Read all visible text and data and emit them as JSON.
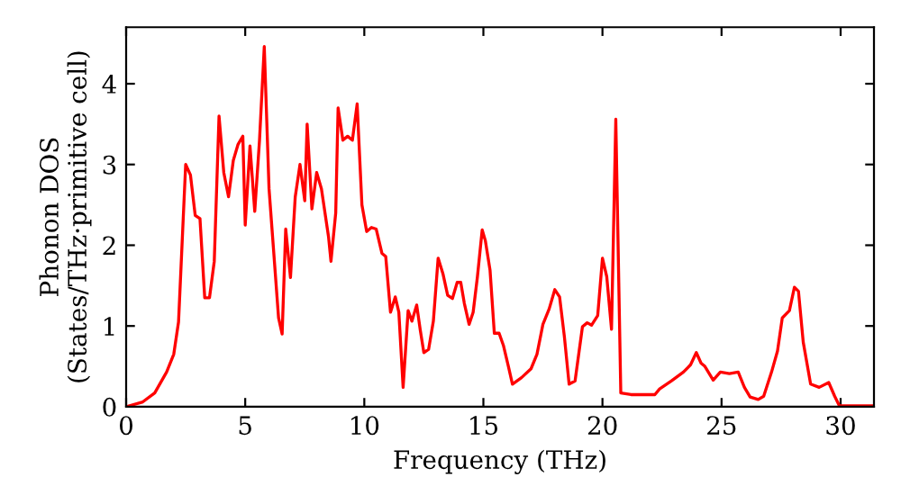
{
  "chart_data": {
    "type": "line",
    "xlabel": "Frequency (THz)",
    "ylabel": "Phonon DOS\n(States/THz·primitive cell)",
    "xlim": [
      0,
      31.4
    ],
    "ylim": [
      0,
      4.7
    ],
    "xticks": [
      0,
      5,
      10,
      15,
      20,
      25,
      30
    ],
    "yticks": [
      0,
      1,
      2,
      3,
      4
    ],
    "grid": false,
    "marker": "none",
    "line_style": "solid",
    "series": [
      {
        "color": "#ff0000",
        "x": [
          0,
          0.7,
          1.2,
          1.7,
          2.0,
          2.2,
          2.5,
          2.7,
          2.9,
          3.1,
          3.3,
          3.5,
          3.7,
          3.9,
          4.1,
          4.3,
          4.5,
          4.7,
          4.9,
          5.0,
          5.2,
          5.4,
          5.6,
          5.8,
          6.0,
          6.2,
          6.4,
          6.55,
          6.7,
          6.9,
          7.1,
          7.3,
          7.5,
          7.6,
          7.8,
          8.0,
          8.2,
          8.5,
          8.6,
          8.8,
          8.9,
          9.1,
          9.3,
          9.5,
          9.7,
          9.9,
          10.1,
          10.3,
          10.5,
          10.74,
          10.9,
          11.1,
          11.3,
          11.45,
          11.63,
          11.84,
          12.0,
          12.2,
          12.35,
          12.5,
          12.7,
          12.9,
          13.1,
          13.3,
          13.5,
          13.7,
          13.9,
          14.05,
          14.2,
          14.4,
          14.57,
          14.75,
          14.95,
          15.08,
          15.28,
          15.46,
          15.66,
          15.84,
          16.05,
          16.22,
          16.6,
          17.0,
          17.25,
          17.5,
          17.76,
          18.0,
          18.2,
          18.4,
          18.6,
          18.85,
          19.16,
          19.36,
          19.54,
          19.8,
          20.0,
          20.18,
          20.38,
          20.56,
          20.77,
          21.2,
          22.2,
          22.4,
          22.9,
          23.4,
          23.7,
          23.94,
          24.14,
          24.3,
          24.65,
          24.95,
          25.33,
          25.7,
          25.96,
          26.2,
          26.54,
          26.77,
          27.1,
          27.35,
          27.55,
          27.85,
          28.06,
          28.23,
          28.43,
          28.74,
          29.1,
          29.5,
          29.75,
          29.95,
          31.4
        ],
        "values": [
          0,
          0.06,
          0.17,
          0.43,
          0.65,
          1.05,
          3.0,
          2.87,
          2.37,
          2.33,
          1.35,
          1.35,
          1.8,
          3.6,
          2.9,
          2.6,
          3.05,
          3.25,
          3.35,
          2.25,
          3.23,
          2.42,
          3.3,
          4.46,
          2.7,
          1.9,
          1.1,
          0.9,
          2.2,
          1.6,
          2.6,
          3.0,
          2.55,
          3.5,
          2.45,
          2.9,
          2.7,
          2.1,
          1.8,
          2.4,
          3.7,
          3.3,
          3.35,
          3.3,
          3.75,
          2.5,
          2.17,
          2.22,
          2.2,
          1.9,
          1.86,
          1.17,
          1.36,
          1.17,
          0.24,
          1.19,
          1.06,
          1.26,
          0.95,
          0.67,
          0.71,
          1.06,
          1.84,
          1.65,
          1.38,
          1.34,
          1.54,
          1.54,
          1.28,
          1.02,
          1.17,
          1.61,
          2.19,
          2.06,
          1.69,
          0.91,
          0.91,
          0.76,
          0.5,
          0.28,
          0.36,
          0.47,
          0.65,
          1.02,
          1.21,
          1.45,
          1.36,
          0.87,
          0.28,
          0.32,
          0.99,
          1.04,
          1.01,
          1.13,
          1.84,
          1.61,
          0.96,
          3.56,
          0.17,
          0.15,
          0.15,
          0.22,
          0.32,
          0.43,
          0.52,
          0.67,
          0.54,
          0.5,
          0.33,
          0.43,
          0.41,
          0.43,
          0.24,
          0.12,
          0.09,
          0.13,
          0.43,
          0.69,
          1.1,
          1.19,
          1.48,
          1.43,
          0.8,
          0.28,
          0.24,
          0.3,
          0.13,
          0.01,
          0.01
        ]
      }
    ]
  }
}
